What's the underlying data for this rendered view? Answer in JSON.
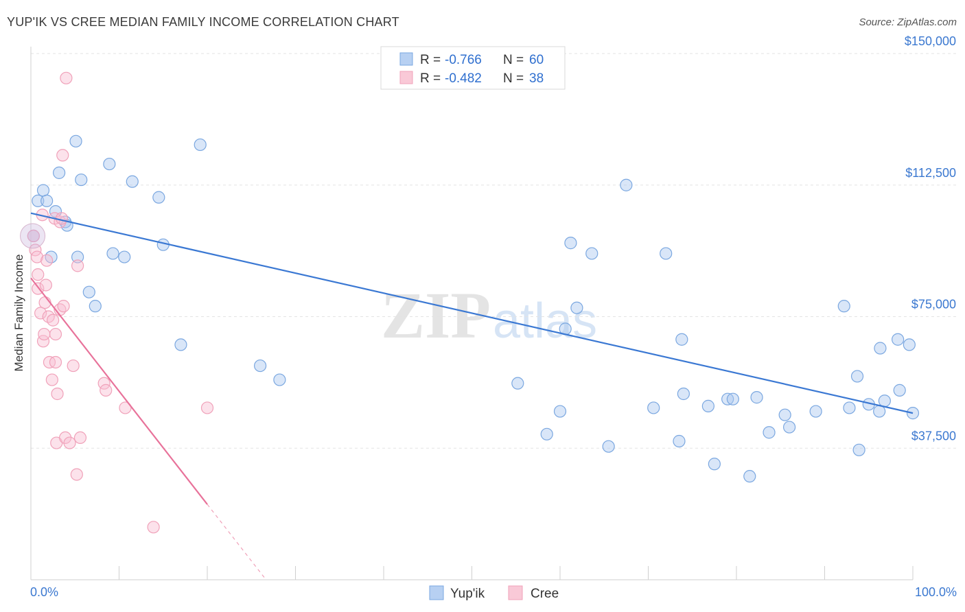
{
  "title": "YUP'IK VS CREE MEDIAN FAMILY INCOME CORRELATION CHART",
  "source": "Source: ZipAtlas.com",
  "watermark": {
    "zip": "ZIP",
    "atlas": "atlas"
  },
  "colors": {
    "blue": "#7aa7e0",
    "blue_line": "#3a78d3",
    "pink": "#f0a1b9",
    "pink_line": "#e8729a",
    "tick": "#3b78d0"
  },
  "legend": {
    "r_label": "R =",
    "n_label": "N =",
    "rows": [
      {
        "r": "-0.766",
        "n": "60"
      },
      {
        "r": "-0.482",
        "n": "38"
      }
    ]
  },
  "chart_data": {
    "type": "scatter",
    "title": "YUP'IK VS CREE MEDIAN FAMILY INCOME CORRELATION CHART",
    "xlabel": "",
    "ylabel": "Median Family Income",
    "xlim": [
      0,
      100
    ],
    "ylim": [
      0,
      150000
    ],
    "x_tick_labels": [
      "0.0%",
      "100.0%"
    ],
    "y_ticks": [
      37500,
      75000,
      112500,
      150000
    ],
    "y_tick_labels": [
      "$37,500",
      "$75,000",
      "$112,500",
      "$150,000"
    ],
    "grid": true,
    "legend_position": "top-center",
    "series": [
      {
        "name": "Yup'ik",
        "r": -0.766,
        "n": 60,
        "trend": {
          "x0": 0,
          "y0": 104500,
          "x1": 100,
          "y1": 47500
        },
        "points": [
          [
            0.3,
            98000
          ],
          [
            0.8,
            108000
          ],
          [
            1.4,
            111000
          ],
          [
            1.8,
            108000
          ],
          [
            2.3,
            92000
          ],
          [
            2.8,
            105000
          ],
          [
            3.2,
            116000
          ],
          [
            3.9,
            102000
          ],
          [
            4.1,
            101000
          ],
          [
            5.1,
            125000
          ],
          [
            5.3,
            92000
          ],
          [
            5.7,
            114000
          ],
          [
            6.6,
            82000
          ],
          [
            7.3,
            78000
          ],
          [
            8.9,
            118500
          ],
          [
            9.3,
            93000
          ],
          [
            10.6,
            92000
          ],
          [
            11.5,
            113500
          ],
          [
            14.5,
            109000
          ],
          [
            15.0,
            95500
          ],
          [
            17.0,
            67000
          ],
          [
            19.2,
            124000
          ],
          [
            26.0,
            61000
          ],
          [
            28.2,
            57000
          ],
          [
            55.2,
            56000
          ],
          [
            58.5,
            41500
          ],
          [
            60.0,
            48000
          ],
          [
            60.6,
            71500
          ],
          [
            61.2,
            96000
          ],
          [
            61.9,
            77500
          ],
          [
            63.6,
            93000
          ],
          [
            65.5,
            38000
          ],
          [
            67.5,
            112500
          ],
          [
            70.6,
            49000
          ],
          [
            72.0,
            93000
          ],
          [
            73.5,
            39500
          ],
          [
            73.8,
            68500
          ],
          [
            74.0,
            53000
          ],
          [
            76.8,
            49500
          ],
          [
            77.5,
            33000
          ],
          [
            79.0,
            51500
          ],
          [
            79.6,
            51500
          ],
          [
            81.5,
            29500
          ],
          [
            82.3,
            52000
          ],
          [
            83.7,
            42000
          ],
          [
            85.5,
            47000
          ],
          [
            86.0,
            43500
          ],
          [
            89.0,
            48000
          ],
          [
            92.2,
            78000
          ],
          [
            92.8,
            49000
          ],
          [
            93.7,
            58000
          ],
          [
            93.9,
            37000
          ],
          [
            95.0,
            50000
          ],
          [
            96.2,
            48000
          ],
          [
            96.3,
            66000
          ],
          [
            96.8,
            51000
          ],
          [
            98.3,
            68500
          ],
          [
            98.5,
            54000
          ],
          [
            99.6,
            67000
          ],
          [
            100.0,
            47500
          ]
        ]
      },
      {
        "name": "Cree",
        "r": -0.482,
        "n": 38,
        "trend": {
          "x0": 0,
          "y0": 86000,
          "x1": 20,
          "y1": 21500,
          "x_dash_end": 26.5
        },
        "points": [
          [
            0.3,
            98000
          ],
          [
            0.5,
            94000
          ],
          [
            0.7,
            92000
          ],
          [
            0.8,
            83000
          ],
          [
            0.8,
            87000
          ],
          [
            1.1,
            76000
          ],
          [
            1.3,
            104000
          ],
          [
            1.4,
            68000
          ],
          [
            1.5,
            70000
          ],
          [
            1.6,
            79000
          ],
          [
            1.7,
            84000
          ],
          [
            1.8,
            91000
          ],
          [
            2.0,
            75000
          ],
          [
            2.1,
            62000
          ],
          [
            2.4,
            57000
          ],
          [
            2.5,
            74000
          ],
          [
            2.7,
            103000
          ],
          [
            2.8,
            62000
          ],
          [
            2.8,
            70000
          ],
          [
            2.9,
            39000
          ],
          [
            3.0,
            53000
          ],
          [
            3.3,
            102000
          ],
          [
            3.3,
            77000
          ],
          [
            3.5,
            103000
          ],
          [
            3.6,
            121000
          ],
          [
            3.7,
            78000
          ],
          [
            3.9,
            40500
          ],
          [
            4.0,
            143000
          ],
          [
            4.4,
            39000
          ],
          [
            4.8,
            61000
          ],
          [
            5.2,
            30000
          ],
          [
            5.3,
            89500
          ],
          [
            5.6,
            40500
          ],
          [
            8.3,
            56000
          ],
          [
            8.5,
            54000
          ],
          [
            10.7,
            49000
          ],
          [
            13.9,
            15000
          ],
          [
            20.0,
            49000
          ]
        ]
      }
    ]
  },
  "bottom_legend": [
    "Yup'ik",
    "Cree"
  ]
}
